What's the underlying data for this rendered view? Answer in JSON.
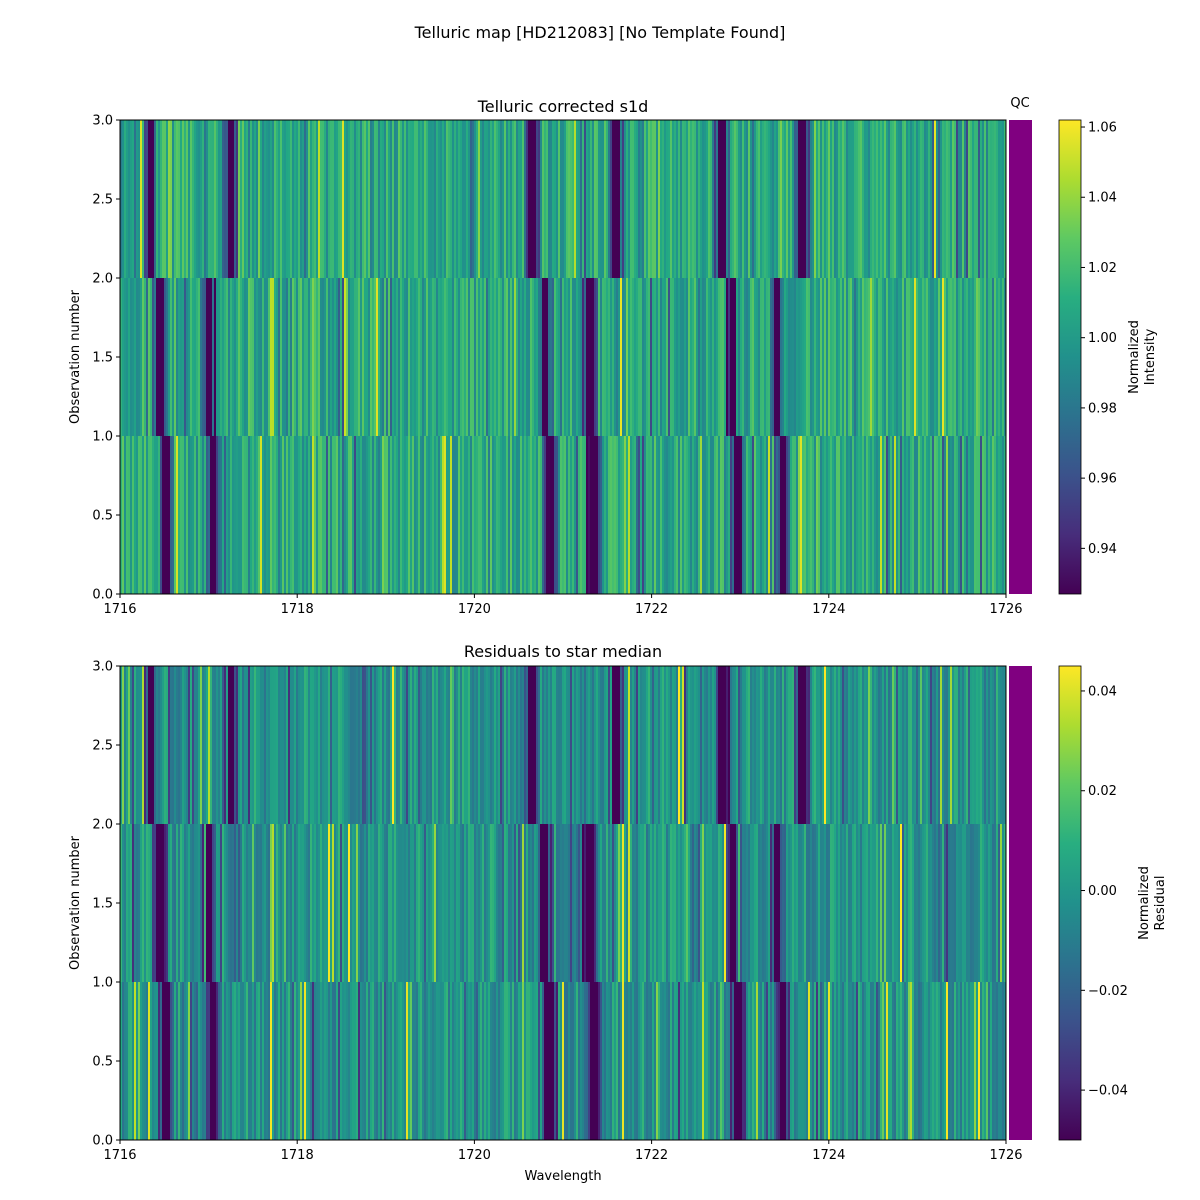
{
  "figure": {
    "suptitle": "Telluric map [HD212083] [No Template Found]",
    "qc_label": "QC",
    "qc_color": "#800080"
  },
  "colormap": "viridis",
  "chart_data": [
    {
      "type": "heatmap",
      "title": "Telluric corrected s1d",
      "xlabel": "",
      "ylabel": "Observation number",
      "xlim": [
        1716,
        1726
      ],
      "ylim": [
        0.0,
        3.0
      ],
      "xticks": [
        1716,
        1718,
        1720,
        1722,
        1724,
        1726
      ],
      "yticks": [
        "0.0",
        "0.5",
        "1.0",
        "1.5",
        "2.0",
        "2.5",
        "3.0"
      ],
      "rows": [
        {
          "observation": 0,
          "y_range": [
            0,
            1
          ],
          "strong_absorption_wavelengths": [
            1716.52,
            1717.05,
            1720.85,
            1721.35,
            1722.98,
            1723.48
          ]
        },
        {
          "observation": 1,
          "y_range": [
            1,
            2
          ],
          "strong_absorption_wavelengths": [
            1716.45,
            1717.0,
            1720.8,
            1721.3,
            1722.92,
            1723.42
          ]
        },
        {
          "observation": 2,
          "y_range": [
            2,
            3
          ],
          "strong_absorption_wavelengths": [
            1716.35,
            1717.25,
            1720.65,
            1721.6,
            1722.8,
            1723.7
          ]
        }
      ],
      "colorbar": {
        "label_lines": [
          "Normalized",
          "Intensity"
        ],
        "vmin": 0.927,
        "vmax": 1.062,
        "ticks": [
          "0.94",
          "0.96",
          "0.98",
          "1.00",
          "1.02",
          "1.04",
          "1.06"
        ]
      },
      "qc_status_color": "#800080"
    },
    {
      "type": "heatmap",
      "title": "Residuals to star median",
      "xlabel": "Wavelength",
      "ylabel": "Observation number",
      "xlim": [
        1716,
        1726
      ],
      "ylim": [
        0.0,
        3.0
      ],
      "xticks": [
        1716,
        1718,
        1720,
        1722,
        1724,
        1726
      ],
      "yticks": [
        "0.0",
        "0.5",
        "1.0",
        "1.5",
        "2.0",
        "2.5",
        "3.0"
      ],
      "colorbar": {
        "label_lines": [
          "Normalized",
          "Residual"
        ],
        "vmin": -0.05,
        "vmax": 0.045,
        "ticks": [
          "−0.04",
          "−0.02",
          "0.00",
          "0.02",
          "0.04"
        ]
      },
      "qc_status_color": "#800080"
    }
  ]
}
